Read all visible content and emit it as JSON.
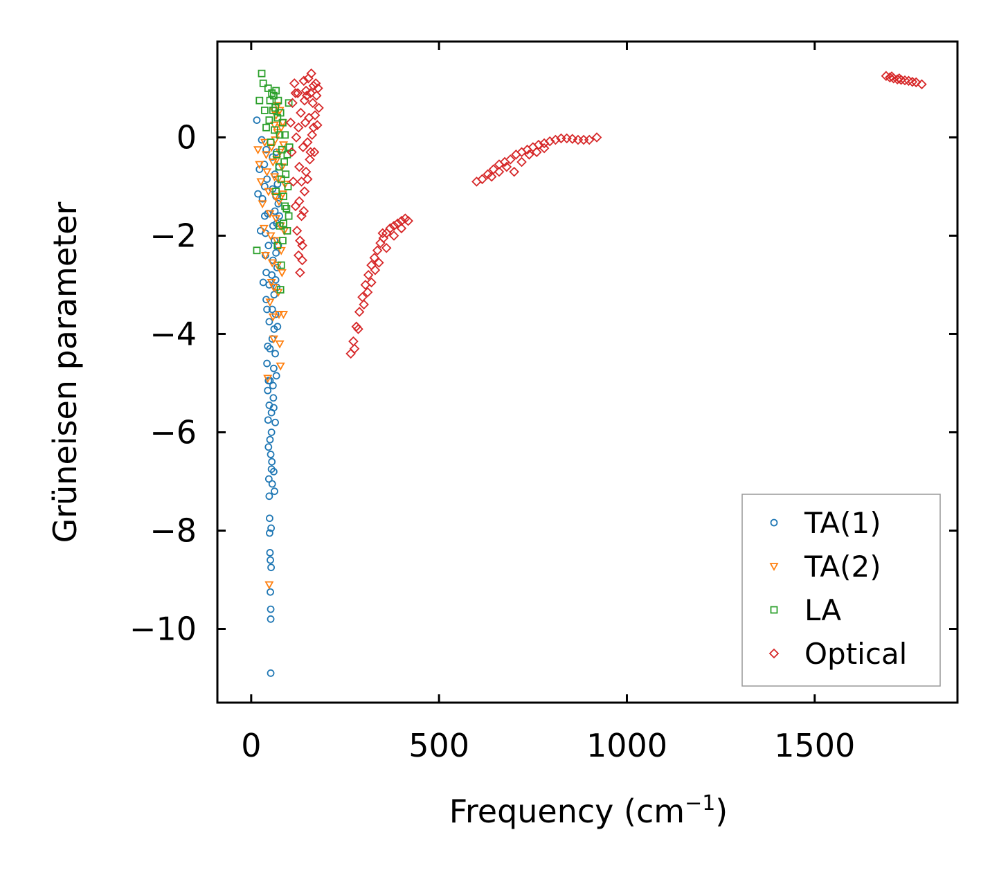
{
  "chart_data": {
    "type": "scatter",
    "title": "",
    "xlabel": "Frequency (cm",
    "xlabel_sup": "−1",
    "xlabel_close": ")",
    "ylabel": "Grüneisen parameter",
    "xlim": [
      -90,
      1880
    ],
    "ylim": [
      -11.5,
      1.95
    ],
    "xticks": [
      0,
      500,
      1000,
      1500
    ],
    "xtick_labels": [
      "0",
      "500",
      "1000",
      "1500"
    ],
    "yticks": [
      0,
      -2,
      -4,
      -6,
      -8,
      -10
    ],
    "ytick_labels": [
      "0",
      "−2",
      "−4",
      "−6",
      "−8",
      "−10"
    ],
    "legend_position": "bottom-right",
    "series": [
      {
        "name": "TA(1)",
        "marker": "circle",
        "color": "#1f77b4",
        "points": [
          [
            15,
            0.35
          ],
          [
            18,
            -1.15
          ],
          [
            22,
            -0.65
          ],
          [
            25,
            -1.9
          ],
          [
            28,
            -0.05
          ],
          [
            30,
            -1.25
          ],
          [
            32,
            -2.95
          ],
          [
            35,
            -0.55
          ],
          [
            36,
            -1.6
          ],
          [
            38,
            -2.4
          ],
          [
            40,
            -0.25
          ],
          [
            40,
            -3.3
          ],
          [
            42,
            -4.6
          ],
          [
            42,
            -0.85
          ],
          [
            44,
            -5.15
          ],
          [
            44,
            -1.55
          ],
          [
            45,
            -5.75
          ],
          [
            46,
            -2.2
          ],
          [
            46,
            -6.3
          ],
          [
            47,
            -6.95
          ],
          [
            48,
            -3.0
          ],
          [
            48,
            -7.3
          ],
          [
            48,
            -3.75
          ],
          [
            49,
            -7.75
          ],
          [
            49,
            -8.05
          ],
          [
            50,
            -4.3
          ],
          [
            50,
            -8.45
          ],
          [
            50,
            -4.95
          ],
          [
            51,
            -8.6
          ],
          [
            51,
            -9.25
          ],
          [
            52,
            -9.6
          ],
          [
            52,
            -9.8
          ],
          [
            52,
            -10.9
          ],
          [
            53,
            -8.75
          ],
          [
            53,
            -7.95
          ],
          [
            54,
            -5.6
          ],
          [
            54,
            -6.0
          ],
          [
            55,
            -6.6
          ],
          [
            55,
            -2.8
          ],
          [
            56,
            -3.5
          ],
          [
            56,
            -4.1
          ],
          [
            57,
            -0.4
          ],
          [
            57,
            -1.05
          ],
          [
            58,
            -1.8
          ],
          [
            58,
            -2.5
          ],
          [
            59,
            -5.3
          ],
          [
            60,
            -4.7
          ],
          [
            60,
            -6.8
          ],
          [
            61,
            -3.9
          ],
          [
            61,
            -3.2
          ],
          [
            62,
            -7.2
          ],
          [
            62,
            -2.1
          ],
          [
            63,
            -1.5
          ],
          [
            63,
            -0.75
          ],
          [
            64,
            -4.4
          ],
          [
            64,
            -5.8
          ],
          [
            65,
            -2.9
          ],
          [
            65,
            -3.6
          ],
          [
            66,
            -1.2
          ],
          [
            66,
            -2.35
          ],
          [
            67,
            -0.3
          ],
          [
            67,
            -4.85
          ],
          [
            68,
            -3.05
          ],
          [
            68,
            -1.75
          ],
          [
            69,
            -2.65
          ],
          [
            70,
            -0.95
          ],
          [
            70,
            -3.85
          ],
          [
            72,
            -1.35
          ],
          [
            72,
            -2.2
          ],
          [
            74,
            -0.6
          ],
          [
            75,
            -1.6
          ],
          [
            36,
            -1.0
          ],
          [
            38,
            -1.95
          ],
          [
            40,
            -2.75
          ],
          [
            42,
            -3.5
          ],
          [
            44,
            -4.25
          ],
          [
            46,
            -4.95
          ],
          [
            48,
            -5.45
          ],
          [
            50,
            -6.15
          ],
          [
            52,
            -6.45
          ],
          [
            54,
            -6.75
          ],
          [
            56,
            -7.05
          ],
          [
            58,
            -5.05
          ],
          [
            60,
            -5.5
          ]
        ]
      },
      {
        "name": "TA(2)",
        "marker": "triangle-down",
        "color": "#ff7f0e",
        "points": [
          [
            18,
            -0.25
          ],
          [
            22,
            -0.55
          ],
          [
            26,
            -0.9
          ],
          [
            30,
            -1.35
          ],
          [
            34,
            -1.85
          ],
          [
            36,
            -0.1
          ],
          [
            38,
            -2.4
          ],
          [
            40,
            -0.35
          ],
          [
            42,
            -0.7
          ],
          [
            44,
            -4.9
          ],
          [
            46,
            -1.1
          ],
          [
            48,
            -9.1
          ],
          [
            50,
            -1.55
          ],
          [
            52,
            -2.0
          ],
          [
            54,
            -0.2
          ],
          [
            56,
            -2.55
          ],
          [
            58,
            -0.5
          ],
          [
            60,
            -3.05
          ],
          [
            60,
            0.55
          ],
          [
            62,
            -0.8
          ],
          [
            62,
            0.25
          ],
          [
            64,
            -1.2
          ],
          [
            64,
            -0.05
          ],
          [
            66,
            -1.65
          ],
          [
            66,
            0.45
          ],
          [
            68,
            -2.1
          ],
          [
            68,
            -0.45
          ],
          [
            70,
            -2.6
          ],
          [
            70,
            0.1
          ],
          [
            72,
            -3.15
          ],
          [
            72,
            -0.85
          ],
          [
            74,
            -3.6
          ],
          [
            74,
            -1.3
          ],
          [
            76,
            -4.2
          ],
          [
            76,
            -0.3
          ],
          [
            78,
            -4.65
          ],
          [
            78,
            -1.8
          ],
          [
            80,
            -2.3
          ],
          [
            80,
            0.2
          ],
          [
            82,
            -2.75
          ],
          [
            82,
            -0.6
          ],
          [
            84,
            -1.15
          ],
          [
            86,
            -3.6
          ],
          [
            86,
            -0.15
          ],
          [
            88,
            -1.9
          ],
          [
            90,
            -0.95
          ],
          [
            70,
            0.65
          ],
          [
            76,
            0.55
          ],
          [
            84,
            0.3
          ],
          [
            58,
            -3.65
          ],
          [
            60,
            -4.1
          ],
          [
            54,
            -2.95
          ],
          [
            50,
            -3.35
          ]
        ]
      },
      {
        "name": "LA",
        "marker": "square",
        "color": "#2ca02c",
        "points": [
          [
            15,
            -2.3
          ],
          [
            22,
            0.75
          ],
          [
            28,
            1.3
          ],
          [
            32,
            1.1
          ],
          [
            36,
            0.55
          ],
          [
            40,
            0.2
          ],
          [
            45,
            1.0
          ],
          [
            48,
            0.35
          ],
          [
            50,
            0.75
          ],
          [
            52,
            -0.1
          ],
          [
            55,
            0.9
          ],
          [
            58,
            0.55
          ],
          [
            60,
            0.85
          ],
          [
            62,
            0.15
          ],
          [
            64,
            0.6
          ],
          [
            66,
            0.95
          ],
          [
            68,
            -0.35
          ],
          [
            70,
            0.4
          ],
          [
            72,
            0.75
          ],
          [
            74,
            -0.6
          ],
          [
            76,
            0.05
          ],
          [
            78,
            0.5
          ],
          [
            80,
            -0.85
          ],
          [
            82,
            -0.25
          ],
          [
            84,
            0.3
          ],
          [
            86,
            -1.2
          ],
          [
            88,
            -0.5
          ],
          [
            90,
            0.05
          ],
          [
            92,
            -0.75
          ],
          [
            94,
            -1.45
          ],
          [
            96,
            -0.35
          ],
          [
            98,
            -1.0
          ],
          [
            100,
            -1.6
          ],
          [
            102,
            -0.2
          ],
          [
            84,
            -2.1
          ],
          [
            80,
            -2.6
          ],
          [
            78,
            -3.1
          ],
          [
            76,
            -1.8
          ],
          [
            86,
            -1.75
          ],
          [
            90,
            -1.4
          ],
          [
            96,
            -1.9
          ],
          [
            66,
            -1.1
          ],
          [
            70,
            -2.2
          ],
          [
            100,
            0.7
          ]
        ]
      },
      {
        "name": "Optical",
        "marker": "diamond",
        "color": "#d62728",
        "points": [
          [
            105,
            0.3
          ],
          [
            108,
            -0.3
          ],
          [
            110,
            0.7
          ],
          [
            112,
            -0.9
          ],
          [
            115,
            1.1
          ],
          [
            118,
            -1.4
          ],
          [
            120,
            0.0
          ],
          [
            122,
            -1.9
          ],
          [
            124,
            0.9
          ],
          [
            126,
            -2.4
          ],
          [
            128,
            -0.6
          ],
          [
            130,
            -2.75
          ],
          [
            132,
            0.5
          ],
          [
            134,
            -1.6
          ],
          [
            136,
            -2.2
          ],
          [
            138,
            -0.2
          ],
          [
            140,
            1.15
          ],
          [
            142,
            -1.1
          ],
          [
            144,
            0.3
          ],
          [
            146,
            -0.7
          ],
          [
            148,
            0.85
          ],
          [
            150,
            -0.1
          ],
          [
            152,
            1.2
          ],
          [
            154,
            0.4
          ],
          [
            156,
            -0.45
          ],
          [
            158,
            0.9
          ],
          [
            160,
            1.3
          ],
          [
            162,
            0.05
          ],
          [
            164,
            0.7
          ],
          [
            166,
            1.05
          ],
          [
            168,
            -0.3
          ],
          [
            170,
            0.45
          ],
          [
            172,
            1.1
          ],
          [
            174,
            0.85
          ],
          [
            176,
            0.25
          ],
          [
            178,
            1.0
          ],
          [
            180,
            0.6
          ],
          [
            118,
            0.9
          ],
          [
            126,
            0.2
          ],
          [
            134,
            -0.9
          ],
          [
            142,
            0.75
          ],
          [
            150,
            -0.85
          ],
          [
            158,
            -0.3
          ],
          [
            166,
            0.2
          ],
          [
            130,
            -2.1
          ],
          [
            136,
            -2.5
          ],
          [
            128,
            -1.3
          ],
          [
            140,
            -1.5
          ],
          [
            146,
            0.95
          ],
          [
            265,
            -4.4
          ],
          [
            272,
            -4.15
          ],
          [
            280,
            -3.85
          ],
          [
            288,
            -3.55
          ],
          [
            296,
            -3.25
          ],
          [
            304,
            -3.0
          ],
          [
            312,
            -2.8
          ],
          [
            320,
            -2.6
          ],
          [
            328,
            -2.45
          ],
          [
            336,
            -2.3
          ],
          [
            344,
            -2.15
          ],
          [
            352,
            -2.05
          ],
          [
            360,
            -1.95
          ],
          [
            370,
            -1.85
          ],
          [
            380,
            -1.8
          ],
          [
            390,
            -1.75
          ],
          [
            400,
            -1.7
          ],
          [
            410,
            -1.65
          ],
          [
            418,
            -1.7
          ],
          [
            350,
            -1.95
          ],
          [
            300,
            -3.4
          ],
          [
            285,
            -3.9
          ],
          [
            320,
            -2.95
          ],
          [
            340,
            -2.55
          ],
          [
            360,
            -2.25
          ],
          [
            380,
            -2.0
          ],
          [
            400,
            -1.85
          ],
          [
            275,
            -4.3
          ],
          [
            310,
            -3.15
          ],
          [
            330,
            -2.7
          ],
          [
            600,
            -0.9
          ],
          [
            615,
            -0.85
          ],
          [
            630,
            -0.75
          ],
          [
            645,
            -0.65
          ],
          [
            660,
            -0.55
          ],
          [
            675,
            -0.5
          ],
          [
            690,
            -0.45
          ],
          [
            705,
            -0.35
          ],
          [
            720,
            -0.3
          ],
          [
            735,
            -0.25
          ],
          [
            750,
            -0.2
          ],
          [
            765,
            -0.15
          ],
          [
            780,
            -0.12
          ],
          [
            795,
            -0.08
          ],
          [
            810,
            -0.05
          ],
          [
            825,
            -0.02
          ],
          [
            840,
            -0.02
          ],
          [
            855,
            -0.03
          ],
          [
            870,
            -0.05
          ],
          [
            885,
            -0.05
          ],
          [
            900,
            -0.05
          ],
          [
            920,
            0.0
          ],
          [
            700,
            -0.7
          ],
          [
            680,
            -0.6
          ],
          [
            660,
            -0.7
          ],
          [
            640,
            -0.8
          ],
          [
            720,
            -0.5
          ],
          [
            740,
            -0.35
          ],
          [
            760,
            -0.3
          ],
          [
            780,
            -0.22
          ],
          [
            1690,
            1.25
          ],
          [
            1700,
            1.22
          ],
          [
            1710,
            1.2
          ],
          [
            1720,
            1.18
          ],
          [
            1730,
            1.17
          ],
          [
            1740,
            1.16
          ],
          [
            1750,
            1.15
          ],
          [
            1760,
            1.13
          ],
          [
            1770,
            1.12
          ],
          [
            1785,
            1.08
          ],
          [
            1705,
            1.24
          ],
          [
            1725,
            1.2
          ]
        ]
      }
    ]
  }
}
